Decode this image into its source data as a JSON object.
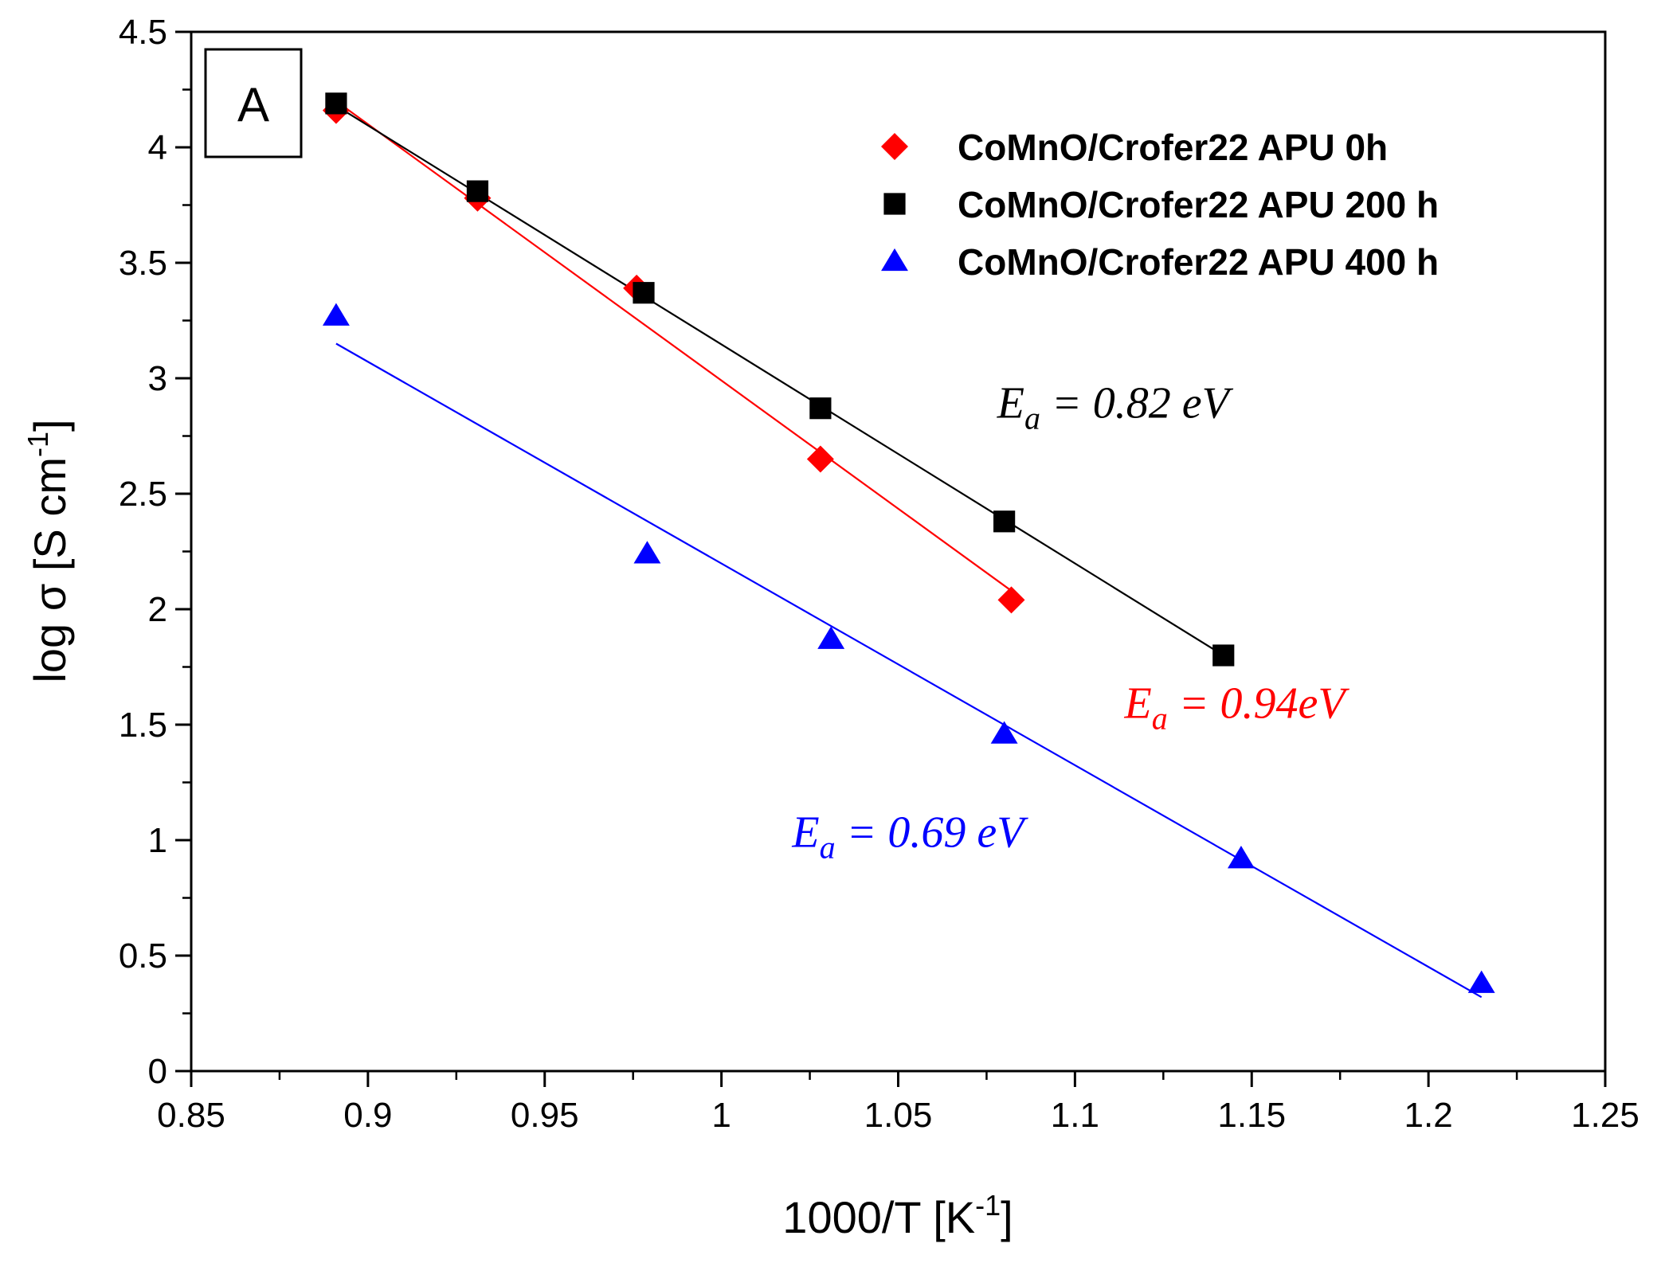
{
  "chart_data": {
    "type": "scatter",
    "panel_label": "A",
    "xlabel_main": "1000/T [K",
    "xlabel_sup": "-1",
    "xlabel_close": "]",
    "ylabel_main": "log σ [S cm",
    "ylabel_sup": "-1",
    "ylabel_close": "]",
    "xlim": [
      0.85,
      1.25
    ],
    "ylim": [
      0,
      4.5
    ],
    "xticks": [
      0.85,
      0.9,
      0.95,
      1,
      1.05,
      1.1,
      1.15,
      1.2,
      1.25
    ],
    "xtick_labels": [
      "0.85",
      "0.9",
      "0.95",
      "1",
      "1.05",
      "1.1",
      "1.15",
      "1.2",
      "1.25"
    ],
    "yticks": [
      0,
      0.5,
      1,
      1.5,
      2,
      2.5,
      3,
      3.5,
      4,
      4.5
    ],
    "ytick_labels": [
      "0",
      "0.5",
      "1",
      "1.5",
      "2",
      "2.5",
      "3",
      "3.5",
      "4",
      "4.5"
    ],
    "legend_position": "top-right",
    "series": [
      {
        "name": "CoMnO/Crofer22 APU 0h",
        "marker": "diamond",
        "color": "#ff0000",
        "x": [
          0.891,
          0.931,
          0.976,
          1.028,
          1.082
        ],
        "y": [
          4.16,
          3.78,
          3.39,
          2.65,
          2.04
        ],
        "fit": {
          "x": [
            0.891,
            1.082
          ],
          "y": [
            4.2,
            2.08
          ]
        }
      },
      {
        "name": "CoMnO/Crofer22 APU 200 h",
        "marker": "square",
        "color": "#000000",
        "x": [
          0.891,
          0.931,
          0.978,
          1.028,
          1.08,
          1.142
        ],
        "y": [
          4.19,
          3.81,
          3.37,
          2.87,
          2.38,
          1.8
        ],
        "fit": {
          "x": [
            0.891,
            1.142
          ],
          "y": [
            4.18,
            1.8
          ]
        }
      },
      {
        "name": "CoMnO/Crofer22 APU 400 h",
        "marker": "triangle",
        "color": "#0000ff",
        "x": [
          0.891,
          0.979,
          1.031,
          1.08,
          1.147,
          1.215
        ],
        "y": [
          3.27,
          2.24,
          1.87,
          1.46,
          0.92,
          0.38
        ],
        "fit": {
          "x": [
            0.891,
            1.215
          ],
          "y": [
            3.15,
            0.32
          ]
        }
      }
    ],
    "annotations": [
      {
        "lhs": "E",
        "sub": "a",
        "rhs": " = 0.82 eV",
        "color": "#000000",
        "x": 1.078,
        "y": 2.83
      },
      {
        "lhs": "E",
        "sub": "a",
        "rhs": " = 0.94eV",
        "color": "#ff0000",
        "x": 1.114,
        "y": 1.53
      },
      {
        "lhs": "E",
        "sub": "a",
        "rhs": " = 0.69 eV",
        "color": "#0000ff",
        "x": 1.02,
        "y": 0.97
      }
    ]
  }
}
